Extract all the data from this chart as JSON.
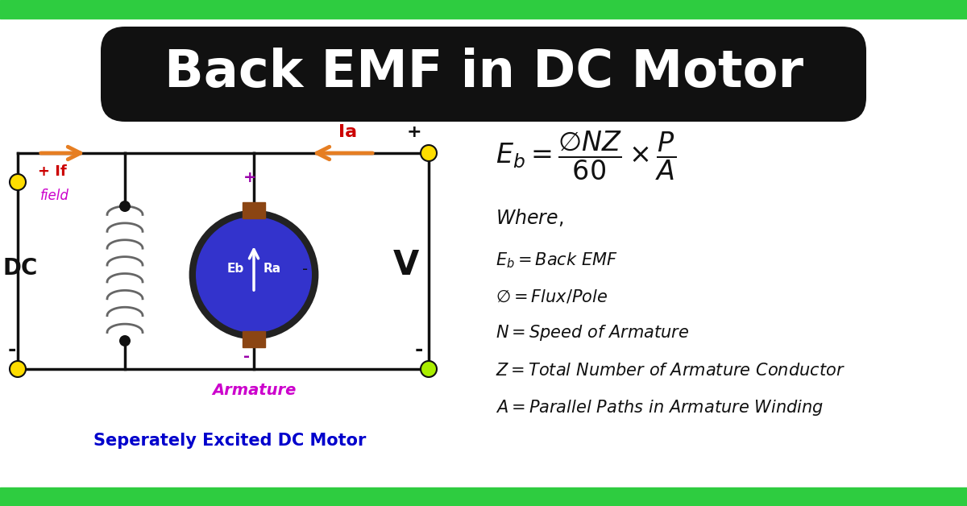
{
  "title": "Back EMF in DC Motor",
  "title_bg": "#111111",
  "title_color": "#ffffff",
  "bg_color": "#ffffff",
  "top_bar_color": "#2ecc40",
  "bottom_bar_color": "#2ecc40",
  "circuit_label": "Seperately Excited DC Motor",
  "armature_label": "Armature",
  "green_color": "#2ecc40",
  "orange_color": "#e67e22",
  "blue_color": "#3333cc",
  "purple_color": "#cc00cc",
  "red_color": "#cc0000",
  "yellow_color": "#ffdd00",
  "black_color": "#111111",
  "white_color": "#ffffff",
  "formula_y": [
    3.05,
    2.6,
    2.15,
    1.68,
    1.22
  ],
  "formula_texts": [
    "$\\mathit{E_b = Back\\ EMF}$",
    "$\\mathit{\\varnothing = Flux/Pole}$",
    "$\\mathit{N = Speed\\ of\\ Armature}$",
    "$\\mathit{Z = Total\\ Number\\ of\\ Armature\\ Conductor}$",
    "$\\mathit{A = Parallel\\ Paths\\ in\\ Armature\\ Winding}$"
  ]
}
